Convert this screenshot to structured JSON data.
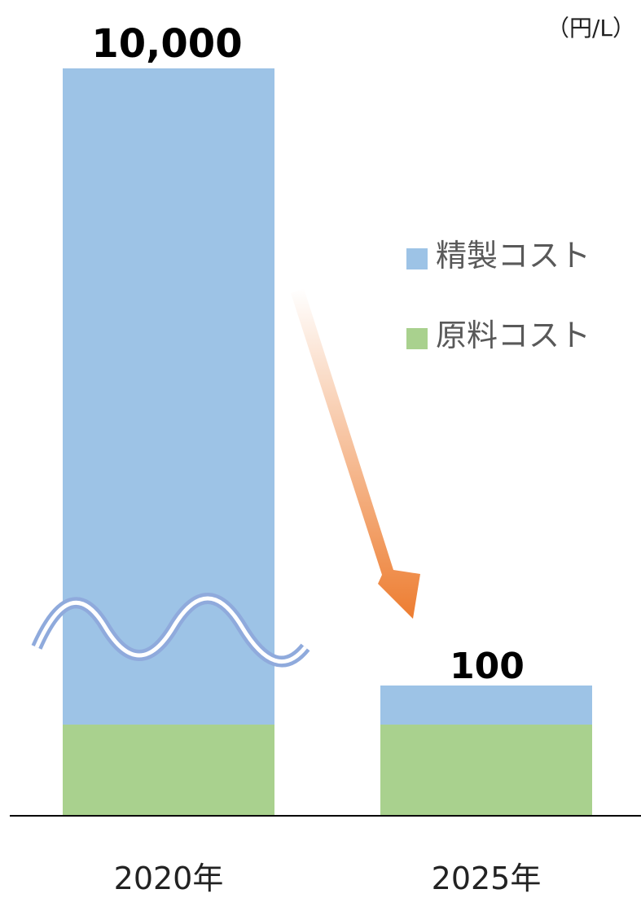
{
  "chart_data": {
    "type": "bar",
    "stacked": true,
    "axis_break": true,
    "unit": "（円/L）",
    "categories": [
      "2020年",
      "2025年"
    ],
    "series": [
      {
        "name": "原料コスト",
        "color": "#a9d18e",
        "values": [
          null,
          null
        ]
      },
      {
        "name": "精製コスト",
        "color": "#9dc3e6",
        "values": [
          null,
          null
        ]
      }
    ],
    "totals": [
      10000,
      100
    ],
    "total_labels": [
      "10,000",
      "100"
    ],
    "legend": {
      "position": "right"
    },
    "arrow_color": "#ed7d31",
    "break_mark_color": "#8faadc"
  }
}
